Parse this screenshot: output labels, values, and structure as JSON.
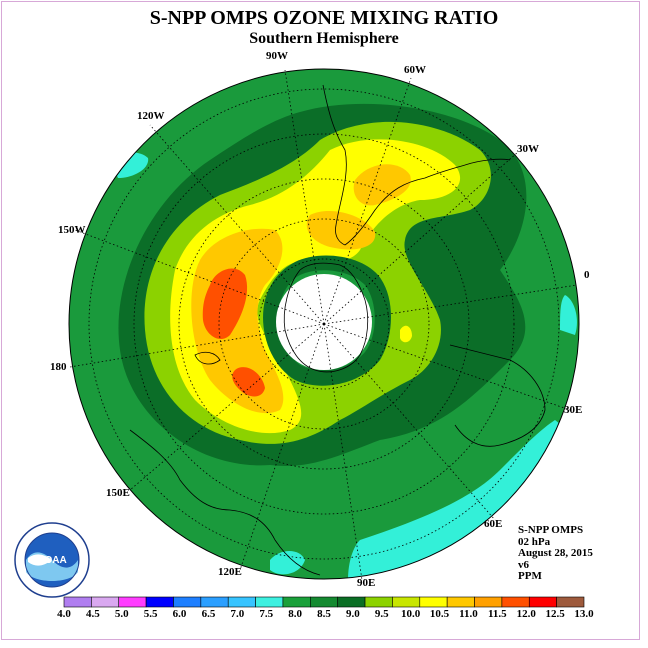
{
  "title": "S-NPP OMPS OZONE MIXING RATIO",
  "subtitle": "Southern Hemisphere",
  "longitude_labels": [
    {
      "text": "90W",
      "name": "lon-label-90w"
    },
    {
      "text": "60W",
      "name": "lon-label-60w"
    },
    {
      "text": "120W",
      "name": "lon-label-120w"
    },
    {
      "text": "30W",
      "name": "lon-label-30w"
    },
    {
      "text": "150W",
      "name": "lon-label-150w"
    },
    {
      "text": "0",
      "name": "lon-label-0"
    },
    {
      "text": "180",
      "name": "lon-label-180"
    },
    {
      "text": "30E",
      "name": "lon-label-30e"
    },
    {
      "text": "150E",
      "name": "lon-label-150e"
    },
    {
      "text": "60E",
      "name": "lon-label-60e"
    },
    {
      "text": "120E",
      "name": "lon-label-120e"
    },
    {
      "text": "90E",
      "name": "lon-label-90e"
    }
  ],
  "info": {
    "instrument": "S-NPP OMPS",
    "level": "02 hPa",
    "date": "August 28, 2015",
    "version": "v6",
    "units": "PPM"
  },
  "logo_text": "NOAA",
  "legend": {
    "ticks": [
      "4.0",
      "4.5",
      "5.0",
      "5.5",
      "6.0",
      "6.5",
      "7.0",
      "7.5",
      "8.0",
      "8.5",
      "9.0",
      "9.5",
      "10.0",
      "10.5",
      "11.0",
      "11.5",
      "12.0",
      "12.5",
      "13.0"
    ],
    "colors": [
      "#b07ef0",
      "#d9a8f0",
      "#ff3cff",
      "#0000ff",
      "#1e7fff",
      "#2b9fff",
      "#37c4ff",
      "#3df0e0",
      "#1aa03a",
      "#148a30",
      "#0a6e24",
      "#8cd200",
      "#c8e600",
      "#ffff00",
      "#ffc800",
      "#ffa000",
      "#ff5000",
      "#ff0000",
      "#9e5a3c"
    ]
  },
  "colors": {
    "background_field": "#1a9a3c",
    "dark_ring": "#0b6e28",
    "cyan_low": "#33f0d8",
    "polar_night": "#ffffff",
    "frame": "#d7a8d7"
  }
}
